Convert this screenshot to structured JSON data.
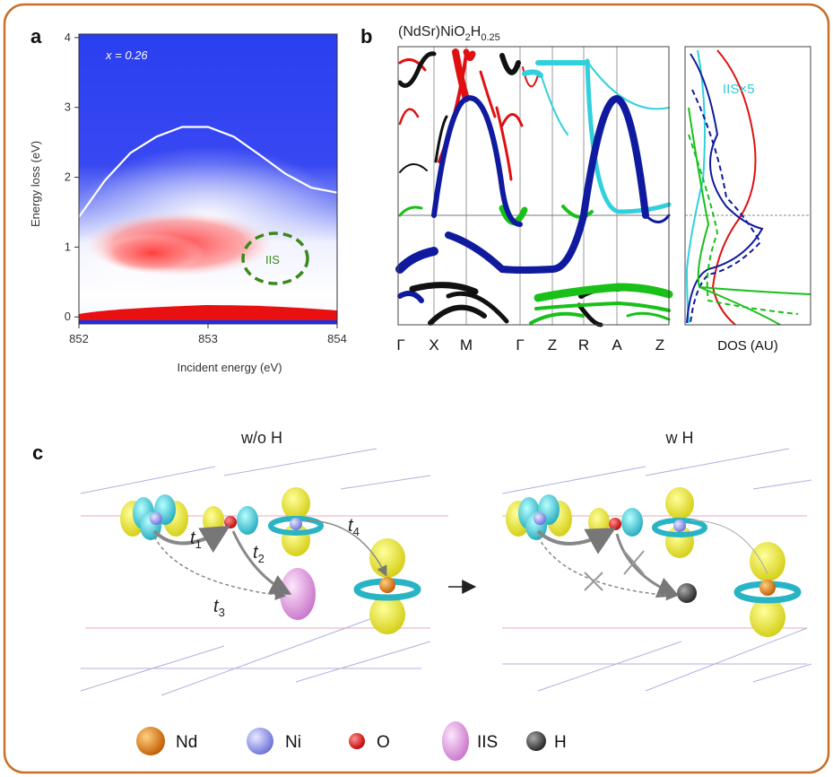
{
  "panel_labels": {
    "a": "a",
    "b": "b",
    "c": "c"
  },
  "panel_a": {
    "annotation": "x = 0.26",
    "iis_label": "IIS",
    "chart_data": {
      "type": "heatmap",
      "title": "",
      "xlabel": "Incident energy (eV)",
      "ylabel": "Energy loss (eV)",
      "xlim": [
        852,
        854
      ],
      "ylim": [
        -0.1,
        4.05
      ],
      "x_ticks": [
        "852",
        "853",
        "854"
      ],
      "y_ticks": [
        "0",
        "1",
        "2",
        "3",
        "4"
      ],
      "white_curve": {
        "x": [
          852.0,
          852.2,
          852.4,
          852.6,
          852.8,
          853.0,
          853.2,
          853.4,
          853.6,
          853.8,
          854.0
        ],
        "y": [
          1.43,
          1.95,
          2.35,
          2.58,
          2.72,
          2.72,
          2.58,
          2.32,
          2.05,
          1.85,
          1.78
        ]
      }
    }
  },
  "panel_b": {
    "title_prefix": "(NdSr)NiO",
    "title_sub1": "2",
    "title_mid": "H",
    "title_sub2": "0.25",
    "kpoints": [
      "Γ",
      "X",
      "M",
      "Γ",
      "Z",
      "R",
      "A",
      "Z"
    ],
    "dos_label": "DOS (AU)",
    "iis_scale_label": "IIS×5",
    "colors": {
      "red": "#e01010",
      "blue": "#101a9e",
      "cyan": "#30d0dc",
      "green": "#18c018",
      "black": "#111111"
    }
  },
  "panel_c": {
    "left_title": "w/o H",
    "right_title": "w H",
    "hoppings": {
      "t1": {
        "base": "t",
        "sub": "1"
      },
      "t2": {
        "base": "t",
        "sub": "2"
      },
      "t3": {
        "base": "t",
        "sub": "3"
      },
      "t4": {
        "base": "t",
        "sub": "4"
      }
    },
    "arrow_glyph": "→"
  },
  "legend": [
    {
      "label": "Nd",
      "color": "#e07010"
    },
    {
      "label": "Ni",
      "color": "#8c90e8"
    },
    {
      "label": "O",
      "color": "#d81010"
    },
    {
      "label": "IIS",
      "color": "#e8a0e8"
    },
    {
      "label": "H",
      "color": "#444444"
    }
  ]
}
